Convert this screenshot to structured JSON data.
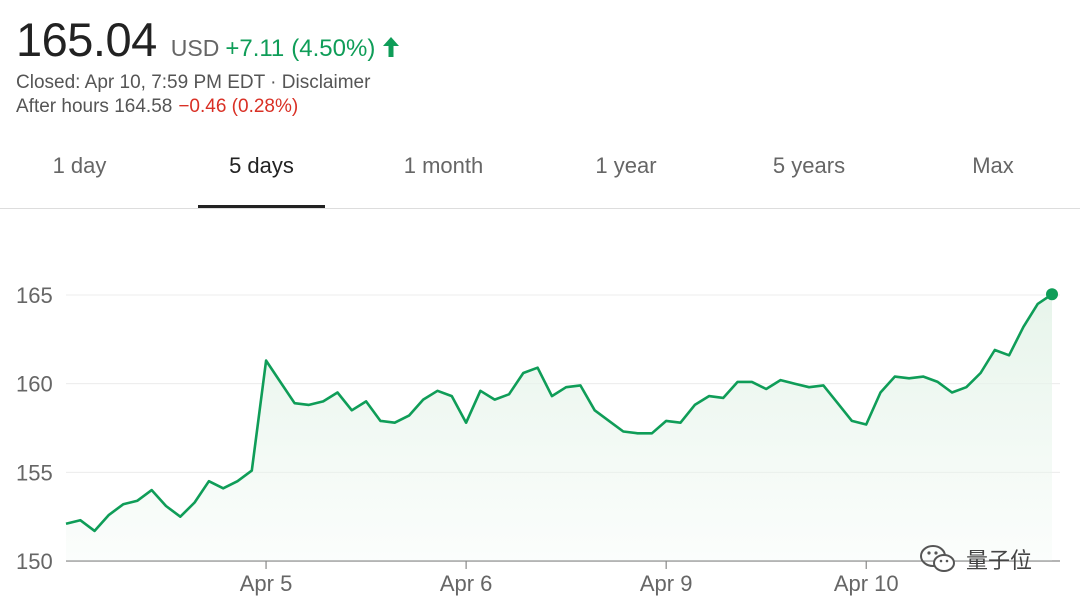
{
  "quote": {
    "price": "165.04",
    "currency": "USD",
    "change": "+7.11",
    "change_pct": "(4.50%)",
    "status_line": "Closed: Apr 10, 7:59 PM EDT · Disclaimer",
    "after_hours_label": "After hours 164.58",
    "after_hours_change": "−0.46 (0.28%)",
    "up_color": "#0f9d58",
    "down_color": "#d93025"
  },
  "tabs": [
    {
      "label": "1 day"
    },
    {
      "label": "5 days",
      "active": true
    },
    {
      "label": "1 month"
    },
    {
      "label": "1 year"
    },
    {
      "label": "5 years"
    },
    {
      "label": "Max"
    }
  ],
  "chart_data": {
    "type": "area",
    "title": "",
    "xlabel": "",
    "ylabel": "",
    "ylim": [
      150,
      165
    ],
    "y_ticks": [
      150,
      155,
      160,
      165
    ],
    "x_ticks": [
      "Apr 5",
      "Apr 6",
      "Apr 9",
      "Apr 10"
    ],
    "grid": true,
    "line_color": "#0f9d58",
    "fill_color": "#e6f4ea",
    "series": [
      {
        "values": [
          152.1,
          152.3,
          151.7,
          152.6,
          153.2,
          153.4,
          154.0,
          153.1,
          152.5,
          153.3,
          154.5,
          154.1,
          154.5,
          155.1,
          161.3,
          160.1,
          158.9,
          158.8,
          159.0,
          159.5,
          158.5,
          159.0,
          157.9,
          157.8,
          158.2,
          159.1,
          159.6,
          159.3,
          157.8,
          159.6,
          159.1,
          159.4,
          160.6,
          160.9,
          159.3,
          159.8,
          159.9,
          158.5,
          157.9,
          157.3,
          157.2,
          157.2,
          157.9,
          157.8,
          158.8,
          159.3,
          159.2,
          160.1,
          160.1,
          159.7,
          160.2,
          160.0,
          159.8,
          159.9,
          158.9,
          157.9,
          157.7,
          159.5,
          160.4,
          160.3,
          160.4,
          160.1,
          159.5,
          159.8,
          160.6,
          161.9,
          161.6,
          163.2,
          164.5,
          165.04
        ]
      }
    ]
  },
  "watermark": {
    "text": "量子位",
    "icon": "wechat-icon"
  }
}
